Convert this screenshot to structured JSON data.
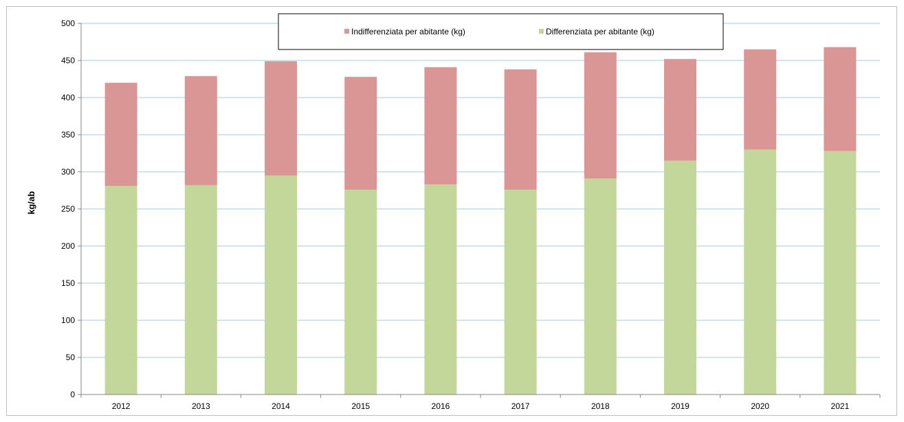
{
  "chart_data": {
    "type": "bar",
    "stacked": true,
    "title": "",
    "xlabel": "",
    "ylabel": "kg/ab",
    "ylim": [
      0,
      500
    ],
    "yticks": [
      0,
      50,
      100,
      150,
      200,
      250,
      300,
      350,
      400,
      450,
      500
    ],
    "grid": true,
    "legend_position": "top-center",
    "categories": [
      "2012",
      "2013",
      "2014",
      "2015",
      "2016",
      "2017",
      "2018",
      "2019",
      "2020",
      "2021"
    ],
    "series": [
      {
        "name": "Differenziata per abitante (kg)",
        "color": "#c4d79b",
        "values": [
          281,
          282,
          295,
          276,
          283,
          276,
          291,
          315,
          330,
          328
        ]
      },
      {
        "name": "Indifferenziata per abitante (kg)",
        "color": "#da9694",
        "values": [
          139,
          147,
          154,
          152,
          158,
          162,
          170,
          137,
          135,
          140
        ]
      }
    ],
    "legend_order": [
      1,
      0
    ],
    "colors": {
      "grid": "#a6c9e2",
      "axis": "#868686"
    }
  }
}
